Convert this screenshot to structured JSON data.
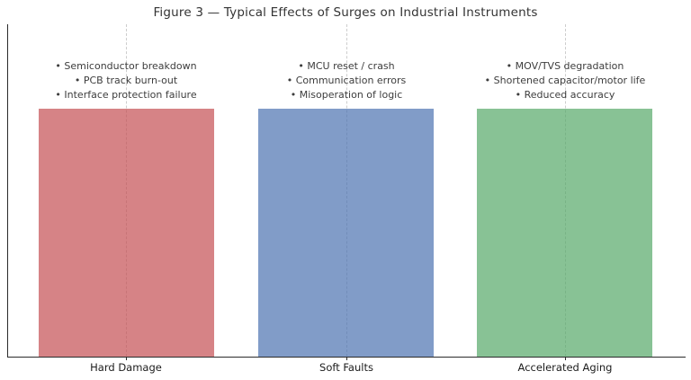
{
  "chart_data": {
    "type": "bar",
    "title": "Figure 3 — Typical Effects of Surges on Industrial Instruments",
    "xlabel": "",
    "ylabel": "",
    "categories": [
      "Hard Damage",
      "Soft Faults",
      "Accelerated Aging"
    ],
    "values": [
      1,
      1,
      1
    ],
    "ylim": [
      0,
      1.33
    ],
    "yticks": [],
    "legend": "none",
    "grid": "vertical dashed lines at category centers",
    "bullet": "•",
    "groups": [
      {
        "color": "#C44E52",
        "fill": "rgba(196,78,82,0.7)",
        "items": [
          "Semiconductor breakdown",
          "PCB track burn-out",
          "Interface protection failure"
        ]
      },
      {
        "color": "#4C72B0",
        "fill": "rgba(76,114,176,0.7)",
        "items": [
          "MCU reset / crash",
          "Communication errors",
          "Misoperation of logic"
        ]
      },
      {
        "color": "#55A868",
        "fill": "rgba(85,168,104,0.7)",
        "items": [
          "MOV/TVS degradation",
          "Shortened capacitor/motor life",
          "Reduced accuracy"
        ]
      }
    ]
  }
}
